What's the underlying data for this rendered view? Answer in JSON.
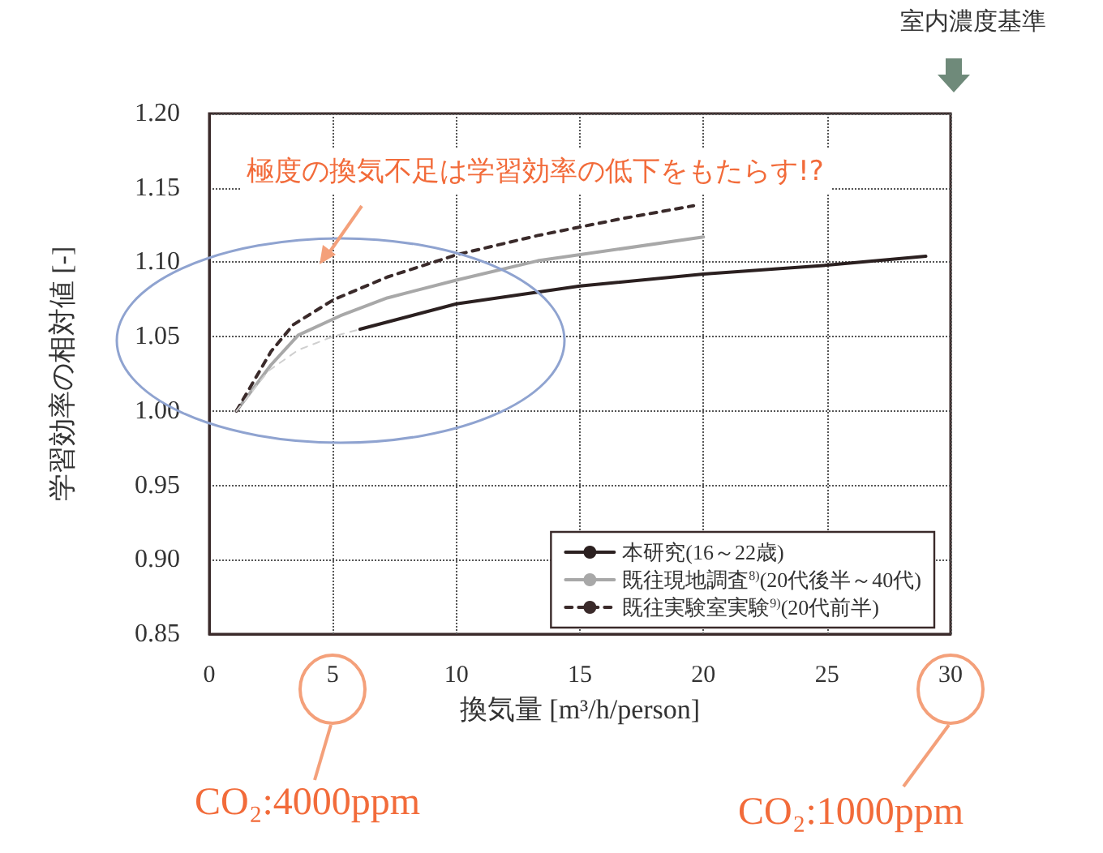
{
  "chart_data": {
    "type": "line",
    "ylabel": "学習効率の相対値 [-]",
    "xlabel": "換気量 [m³/h/person]",
    "annotations": [
      "極度の換気不足は学習効率の低下をもたらす!?",
      "室内濃度基準",
      "CO₂:4000ppm",
      "CO₂:1000ppm"
    ],
    "xlim": [
      0,
      30
    ],
    "xticks": [
      0,
      5,
      10,
      15,
      20,
      25,
      30
    ],
    "ylim": [
      0.85,
      1.2
    ],
    "yticks": [
      {
        "value": 0.85,
        "label": "0.85"
      },
      {
        "value": 0.9,
        "label": "0.90"
      },
      {
        "value": 0.95,
        "label": "0.95"
      },
      {
        "value": 1.0,
        "label": "1.00"
      },
      {
        "value": 1.05,
        "label": "1.05"
      },
      {
        "value": 1.1,
        "label": "1.10"
      },
      {
        "value": 1.15,
        "label": "1.15"
      },
      {
        "value": 1.2,
        "label": "1.20"
      }
    ],
    "grid": true,
    "legend": "bottom right",
    "marker": "none",
    "series": [
      {
        "name": "本研究(16～22歳)",
        "color": "#2b2020",
        "line_style": "solid",
        "x": [
          6.1,
          10,
          15,
          20,
          25,
          29
        ],
        "values": [
          1.055,
          1.072,
          1.084,
          1.092,
          1.098,
          1.104
        ]
      },
      {
        "name": "既往現地調査$^{8)}$(20代後半～40代)",
        "color": "#a8a8a8",
        "line_style": "solid",
        "x": [
          1.1,
          2.5,
          3.6,
          5.3,
          7.2,
          10,
          13.3,
          20
        ],
        "values": [
          1.0,
          1.031,
          1.051,
          1.064,
          1.076,
          1.088,
          1.101,
          1.117
        ]
      },
      {
        "name": "既往実験室実験$^{9)}$(20代前半)",
        "color": "#3a2a2a",
        "line_style": "dashed",
        "x": [
          1.1,
          2.5,
          3.4,
          5.05,
          7.2,
          10,
          13.3,
          16.6,
          19.6
        ],
        "values": [
          1.0,
          1.04,
          1.058,
          1.075,
          1.09,
          1.105,
          1.118,
          1.129,
          1.138
        ]
      },
      {
        "color": "#cfcfcf",
        "line_style": "dashed",
        "x": [
          1.1,
          2.4,
          3.6,
          5,
          6.1
        ],
        "values": [
          1.0,
          1.027,
          1.041,
          1.05,
          1.055
        ]
      }
    ]
  }
}
